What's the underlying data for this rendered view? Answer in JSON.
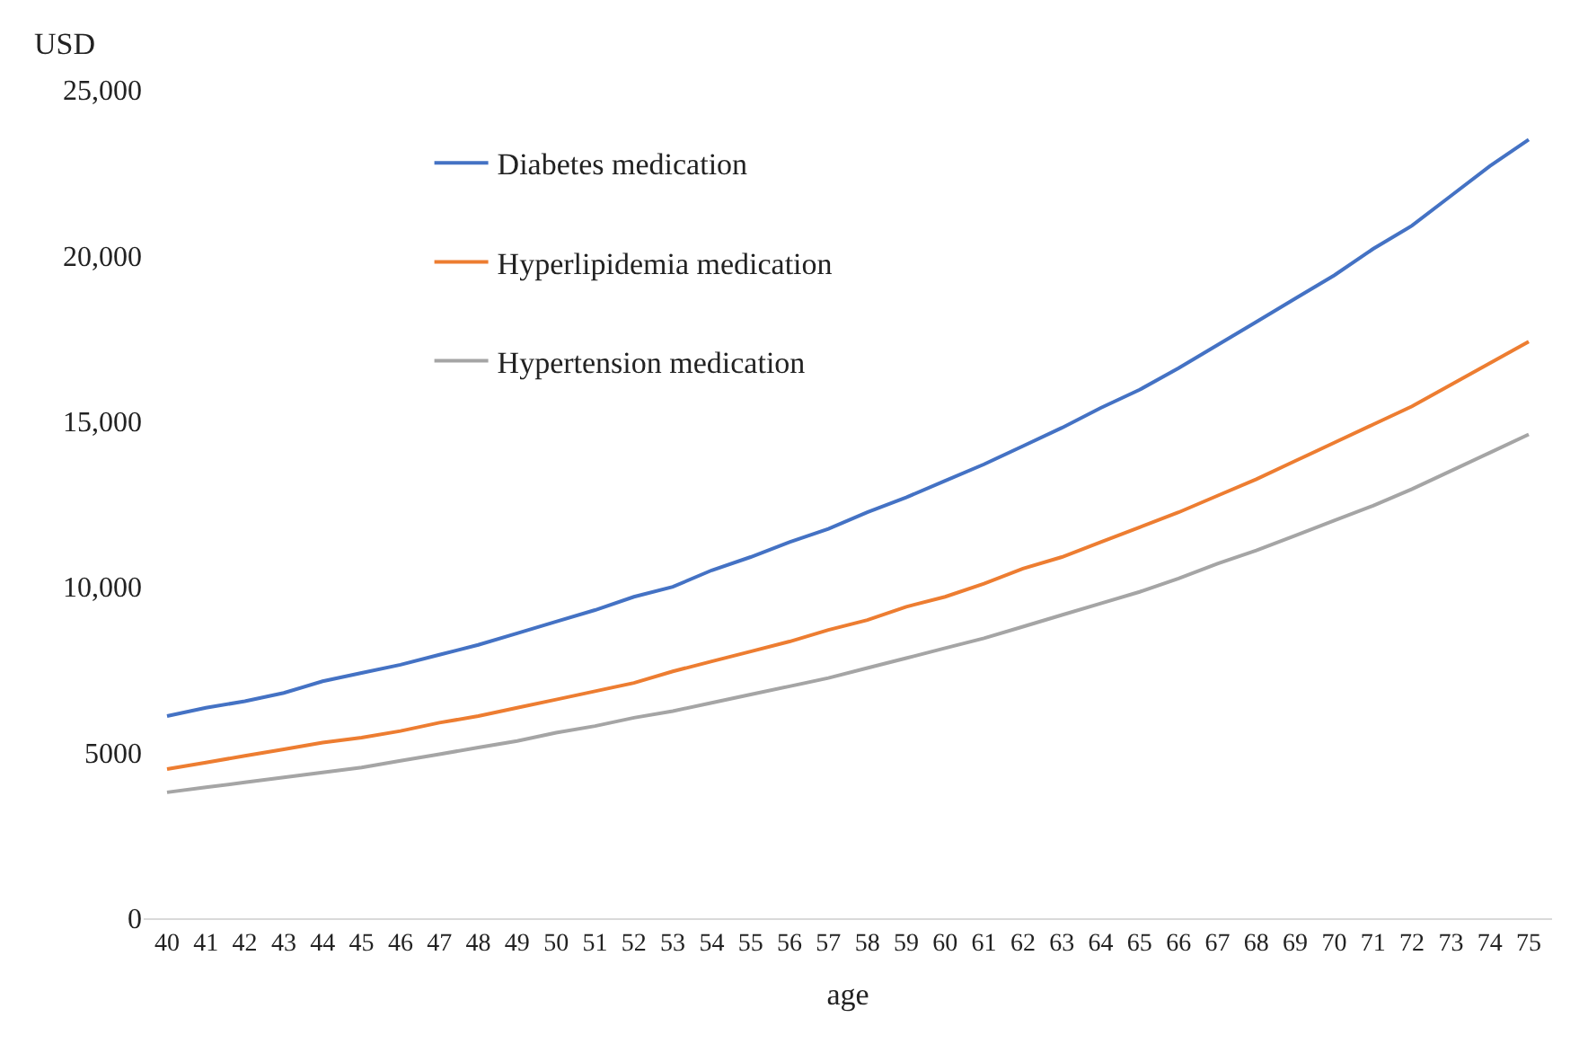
{
  "chart_data": {
    "type": "line",
    "xlabel": "age",
    "ylabel": "USD",
    "categories": [
      "40",
      "41",
      "42",
      "43",
      "44",
      "45",
      "46",
      "47",
      "48",
      "49",
      "50",
      "51",
      "52",
      "53",
      "54",
      "55",
      "56",
      "57",
      "58",
      "59",
      "60",
      "61",
      "62",
      "63",
      "64",
      "65",
      "66",
      "67",
      "68",
      "69",
      "70",
      "71",
      "72",
      "73",
      "74",
      "75"
    ],
    "series": [
      {
        "name": "Diabetes medication",
        "color": "#4472c4",
        "values": [
          6100,
          6350,
          6550,
          6800,
          7150,
          7400,
          7650,
          7950,
          8250,
          8600,
          8950,
          9300,
          9700,
          10000,
          10500,
          10900,
          11350,
          11750,
          12250,
          12700,
          13200,
          13700,
          14250,
          14800,
          15400,
          15950,
          16600,
          17300,
          18000,
          18700,
          19400,
          20200,
          20900,
          21800,
          22700,
          23500
        ]
      },
      {
        "name": "Hyperlipidemia medication",
        "color": "#ed7d31",
        "values": [
          4500,
          4700,
          4900,
          5100,
          5300,
          5450,
          5650,
          5900,
          6100,
          6350,
          6600,
          6850,
          7100,
          7450,
          7750,
          8050,
          8350,
          8700,
          9000,
          9400,
          9700,
          10100,
          10550,
          10900,
          11350,
          11800,
          12250,
          12750,
          13250,
          13800,
          14350,
          14900,
          15450,
          16100,
          16750,
          17400
        ]
      },
      {
        "name": "Hypertension medication",
        "color": "#a5a5a5",
        "values": [
          3800,
          3950,
          4100,
          4250,
          4400,
          4550,
          4750,
          4950,
          5150,
          5350,
          5600,
          5800,
          6050,
          6250,
          6500,
          6750,
          7000,
          7250,
          7550,
          7850,
          8150,
          8450,
          8800,
          9150,
          9500,
          9850,
          10250,
          10700,
          11100,
          11550,
          12000,
          12450,
          12950,
          13500,
          14050,
          14600
        ]
      }
    ],
    "ylim": [
      0,
      25000
    ],
    "yticks": [
      0,
      {
        "value": 5000,
        "label": "5000"
      },
      {
        "value": 10000,
        "label": "10,000"
      },
      {
        "value": 15000,
        "label": "15,000"
      },
      {
        "value": 20000,
        "label": "20,000"
      },
      {
        "value": 25000,
        "label": "25,000"
      }
    ],
    "legend": "top left",
    "marker": "none",
    "line_style": "solid"
  }
}
